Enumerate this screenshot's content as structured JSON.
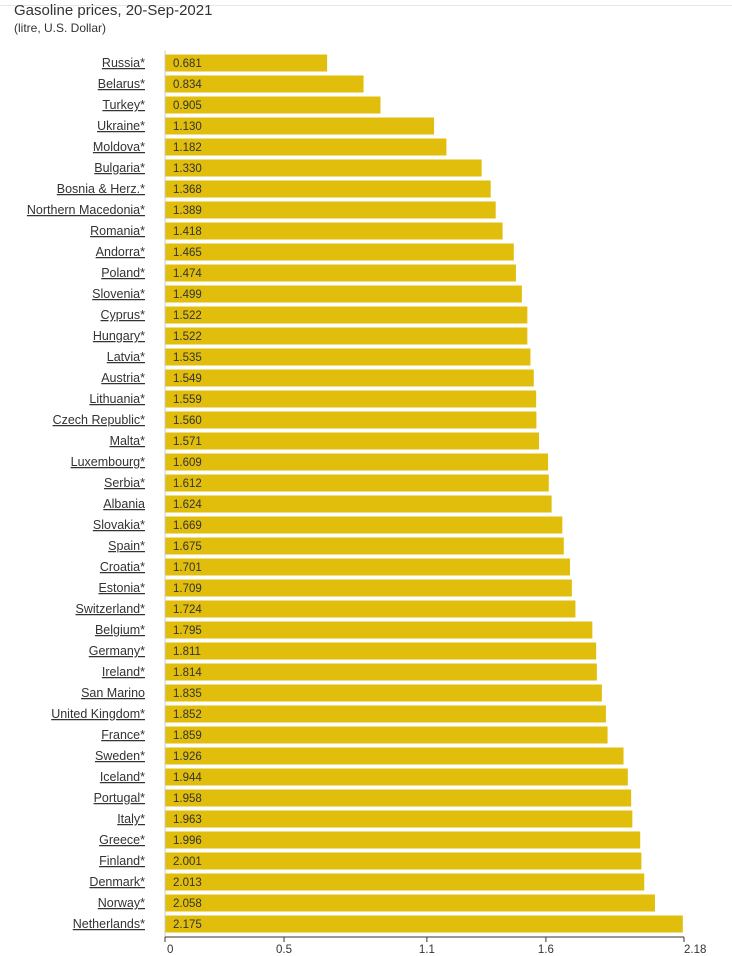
{
  "chart_data": {
    "type": "bar",
    "orientation": "horizontal",
    "title": "Gasoline prices, 20-Sep-2021",
    "subtitle": "(litre, U.S. Dollar)",
    "bar_color": "#e1bd0c",
    "xlim": [
      0,
      2.18
    ],
    "x_ticks": [
      0,
      0.5,
      1.1,
      1.6,
      2.18
    ],
    "x_tick_labels": [
      "0",
      "0.5",
      "1.1",
      "1.6",
      "2.18"
    ],
    "grid": false,
    "categories": [
      "Russia*",
      "Belarus*",
      "Turkey*",
      "Ukraine*",
      "Moldova*",
      "Bulgaria*",
      "Bosnia & Herz.*",
      "Northern Macedonia*",
      "Romania*",
      "Andorra*",
      "Poland*",
      "Slovenia*",
      "Cyprus*",
      "Hungary*",
      "Latvia*",
      "Austria*",
      "Lithuania*",
      "Czech Republic*",
      "Malta*",
      "Luxembourg*",
      "Serbia*",
      "Albania",
      "Slovakia*",
      "Spain*",
      "Croatia*",
      "Estonia*",
      "Switzerland*",
      "Belgium*",
      "Germany*",
      "Ireland*",
      "San Marino",
      "United Kingdom*",
      "France*",
      "Sweden*",
      "Iceland*",
      "Portugal*",
      "Italy*",
      "Greece*",
      "Finland*",
      "Denmark*",
      "Norway*",
      "Netherlands*"
    ],
    "values": [
      0.681,
      0.834,
      0.905,
      1.13,
      1.182,
      1.33,
      1.368,
      1.389,
      1.418,
      1.465,
      1.474,
      1.499,
      1.522,
      1.522,
      1.535,
      1.549,
      1.559,
      1.56,
      1.571,
      1.609,
      1.612,
      1.624,
      1.669,
      1.675,
      1.701,
      1.709,
      1.724,
      1.795,
      1.811,
      1.814,
      1.835,
      1.852,
      1.859,
      1.926,
      1.944,
      1.958,
      1.963,
      1.996,
      2.001,
      2.013,
      2.058,
      2.175
    ],
    "value_labels": [
      "0.681",
      "0.834",
      "0.905",
      "1.130",
      "1.182",
      "1.330",
      "1.368",
      "1.389",
      "1.418",
      "1.465",
      "1.474",
      "1.499",
      "1.522",
      "1.522",
      "1.535",
      "1.549",
      "1.559",
      "1.560",
      "1.571",
      "1.609",
      "1.612",
      "1.624",
      "1.669",
      "1.675",
      "1.701",
      "1.709",
      "1.724",
      "1.795",
      "1.811",
      "1.814",
      "1.835",
      "1.852",
      "1.859",
      "1.926",
      "1.944",
      "1.958",
      "1.963",
      "1.996",
      "2.001",
      "2.013",
      "2.058",
      "2.175"
    ]
  }
}
